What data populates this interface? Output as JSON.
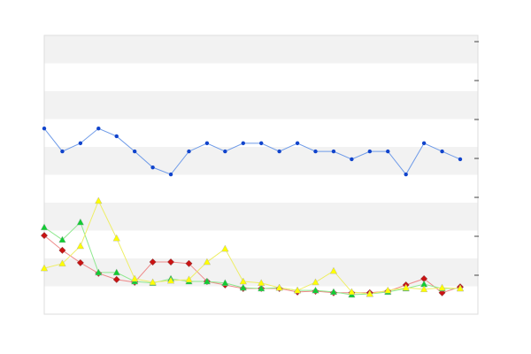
{
  "chart_data": {
    "type": "line",
    "categories": [
      null,
      null,
      null,
      null,
      null,
      null,
      null,
      null,
      null,
      null,
      null,
      null,
      null,
      null,
      null,
      null,
      null,
      null,
      null,
      null,
      null,
      null,
      null,
      null
    ],
    "ylim": [
      0,
      71.6
    ],
    "yticks": [
      10,
      20,
      30,
      40,
      50,
      60,
      70
    ],
    "series": [
      {
        "color": "#6f9be8",
        "marker_color": "#1144cc",
        "marker": "circle",
        "values": [
          47.7,
          41.8,
          43.9,
          47.7,
          45.7,
          41.8,
          37.7,
          35.9,
          41.8,
          43.9,
          41.8,
          43.9,
          43.9,
          41.8,
          43.9,
          41.8,
          41.8,
          39.8,
          41.8,
          41.8,
          35.9,
          43.9,
          41.8,
          39.8
        ]
      },
      {
        "color": "#ee8a8a",
        "marker_color": "#cc1111",
        "marker": "diamond",
        "values": [
          20.2,
          16.4,
          13.2,
          10.5,
          8.9,
          8.2,
          13.4,
          13.4,
          13.0,
          8.4,
          7.5,
          6.6,
          6.6,
          6.6,
          5.7,
          5.9,
          5.5,
          5.5,
          5.5,
          5.9,
          7.5,
          9.1,
          5.5,
          7.0
        ]
      },
      {
        "color": "#8ee88e",
        "marker_color": "#11cc33",
        "marker": "triangle",
        "values": [
          22.3,
          19.1,
          23.6,
          10.7,
          10.7,
          8.4,
          8.0,
          9.1,
          8.4,
          8.4,
          8.0,
          6.8,
          6.6,
          6.8,
          6.1,
          6.1,
          5.7,
          5.0,
          5.2,
          5.7,
          6.6,
          7.7,
          6.6,
          6.6
        ]
      },
      {
        "color": "#eeee66",
        "marker_color": "#ffff00",
        "marker": "triangle",
        "values": [
          11.8,
          13.0,
          17.5,
          29.1,
          19.5,
          9.1,
          8.2,
          8.6,
          8.9,
          13.4,
          16.8,
          8.4,
          8.0,
          6.8,
          6.1,
          8.2,
          11.1,
          5.7,
          5.2,
          6.1,
          6.8,
          6.4,
          6.8,
          6.6
        ]
      }
    ]
  }
}
